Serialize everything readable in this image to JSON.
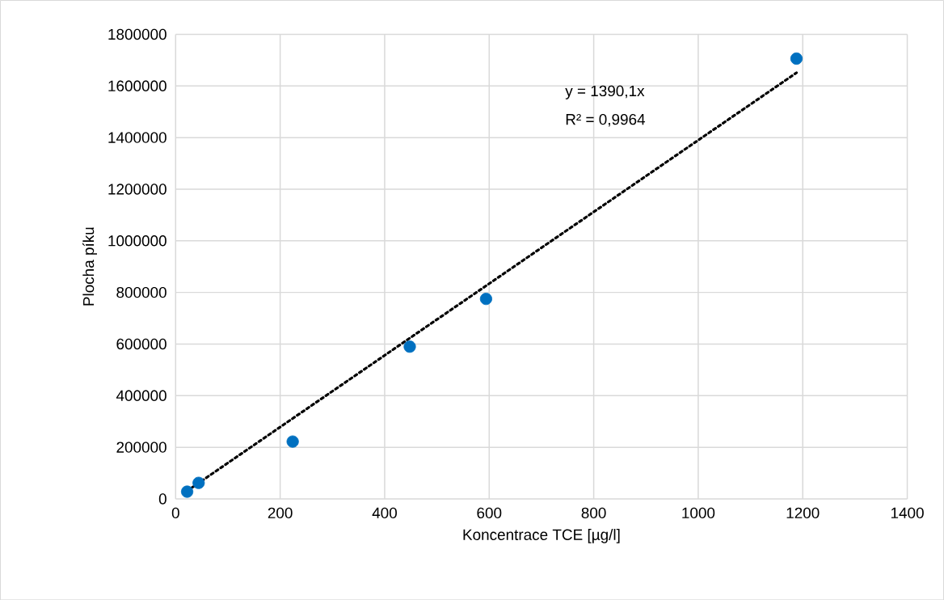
{
  "chart_data": {
    "type": "scatter",
    "xlabel": "Koncentrace TCE [µg/l]",
    "ylabel": "Plocha píku",
    "series": [
      {
        "color": "#0070c0",
        "marker": "circle",
        "x": [
          22,
          44,
          224,
          448,
          594,
          1188
        ],
        "values": [
          28000,
          62000,
          222000,
          590000,
          775000,
          1706000
        ]
      },
      {
        "type": "line",
        "color": "#000000",
        "marker": "none",
        "line_style": "dotted",
        "x": [
          22,
          1188
        ],
        "values": [
          31000,
          1651000
        ]
      }
    ],
    "annotations": [
      "y = 1390,1x",
      "R² = 0,9964"
    ],
    "xlim": [
      0,
      1400
    ],
    "xticks": [
      0,
      200,
      400,
      600,
      800,
      1000,
      1200,
      1400
    ],
    "ylim": [
      0,
      1800000
    ],
    "yticks": [
      0,
      200000,
      400000,
      600000,
      800000,
      1000000,
      1200000,
      1400000,
      1600000,
      1800000
    ],
    "grid": true
  }
}
